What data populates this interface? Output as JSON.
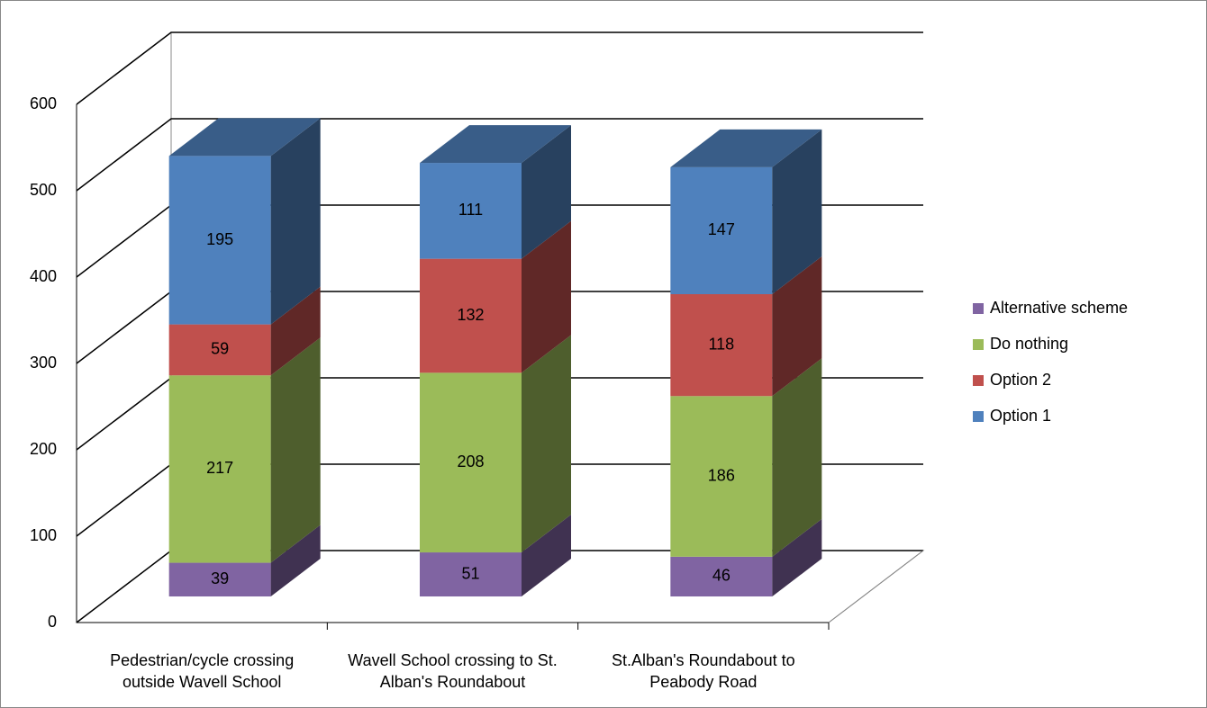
{
  "chart_data": {
    "type": "bar3d_stacked",
    "categories": [
      "Pedestrian/cycle crossing outside Wavell School",
      "Wavell School crossing to St. Alban's Roundabout",
      "St.Alban's Roundabout to Peabody Road"
    ],
    "series": [
      {
        "name": "Alternative scheme",
        "color": "#8064a2",
        "values": [
          39,
          51,
          46
        ]
      },
      {
        "name": "Do nothing",
        "color": "#9bbb59",
        "values": [
          217,
          208,
          186
        ]
      },
      {
        "name": "Option 2",
        "color": "#c0504d",
        "values": [
          59,
          132,
          118
        ]
      },
      {
        "name": "Option 1",
        "color": "#4f81bd",
        "values": [
          195,
          111,
          147
        ]
      }
    ],
    "ylim": [
      0,
      600
    ],
    "yticks": [
      0,
      100,
      200,
      300,
      400,
      500,
      600
    ],
    "grid": true,
    "stacked": true,
    "legend": "right"
  }
}
